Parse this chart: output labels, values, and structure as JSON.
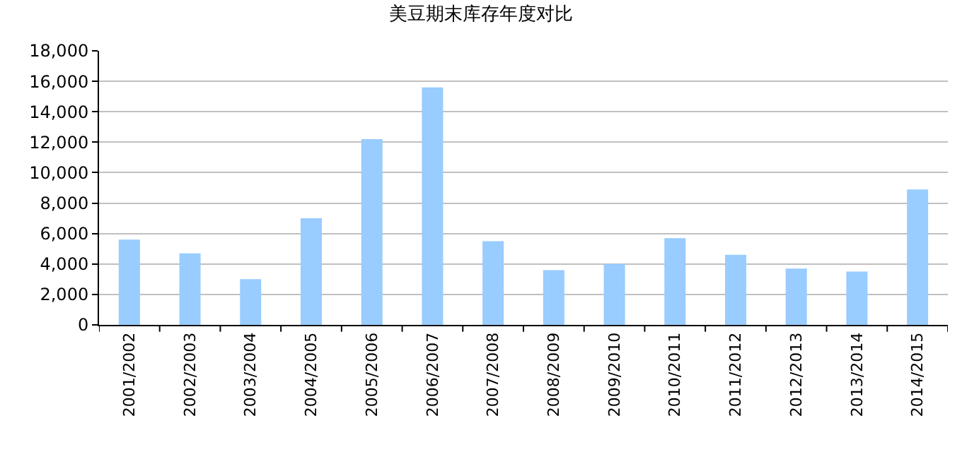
{
  "chart_data": {
    "type": "bar",
    "title": "美豆期末库存年度对比",
    "categories": [
      "2001/2002",
      "2002/2003",
      "2003/2004",
      "2004/2005",
      "2005/2006",
      "2006/2007",
      "2007/2008",
      "2008/2009",
      "2009/2010",
      "2010/2011",
      "2011/2012",
      "2012/2013",
      "2013/2014",
      "2014/2015"
    ],
    "values": [
      5600,
      4700,
      3000,
      7000,
      12200,
      15600,
      5500,
      3600,
      4000,
      5700,
      4600,
      3700,
      3500,
      8900
    ],
    "color": "#99ccff",
    "ylim": [
      0,
      18000
    ],
    "yticks": [
      {
        "value": 0,
        "label": "0"
      },
      {
        "value": 2000,
        "label": "2,000"
      },
      {
        "value": 4000,
        "label": "4,000"
      },
      {
        "value": 6000,
        "label": "6,000"
      },
      {
        "value": 8000,
        "label": "8,000"
      },
      {
        "value": 10000,
        "label": "10,000"
      },
      {
        "value": 12000,
        "label": "12,000"
      },
      {
        "value": 14000,
        "label": "14,000"
      },
      {
        "value": 16000,
        "label": "16,000"
      },
      {
        "value": 18000,
        "label": "18,000"
      }
    ],
    "grid": "y"
  }
}
